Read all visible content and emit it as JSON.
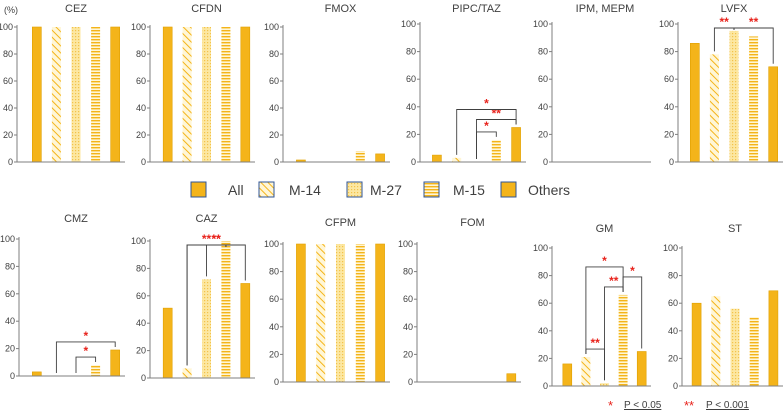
{
  "figure": {
    "y_unit": "(%)",
    "legend": [
      {
        "label": "All",
        "pattern": "solid"
      },
      {
        "label": "M-14",
        "pattern": "diag"
      },
      {
        "label": "M-27",
        "pattern": "dots"
      },
      {
        "label": "M-15",
        "pattern": "hstripe"
      },
      {
        "label": "Others",
        "pattern": "solid"
      }
    ],
    "footnote": [
      {
        "marker": "*",
        "text": "P < 0.05"
      },
      {
        "marker": "**",
        "text": "P < 0.001"
      }
    ],
    "colors": {
      "bar": "#F4B41A",
      "bar_edge": "#E0A000",
      "light_fill": "#FCE9A8",
      "sig": "#E8231C",
      "axis": "#7F7F7F",
      "bracket": "#404040",
      "text": "#404040"
    }
  },
  "chart_data": [
    {
      "type": "bar",
      "title": "CEZ",
      "categories": [
        "All",
        "M-14",
        "M-27",
        "M-15",
        "Others"
      ],
      "values": [
        100,
        100,
        100,
        100,
        100
      ],
      "ylim": [
        0,
        100
      ],
      "yticks": [
        0,
        20,
        40,
        60,
        80,
        100
      ],
      "significance": []
    },
    {
      "type": "bar",
      "title": "CFDN",
      "categories": [
        "All",
        "M-14",
        "M-27",
        "M-15",
        "Others"
      ],
      "values": [
        100,
        100,
        100,
        100,
        100
      ],
      "ylim": [
        0,
        100
      ],
      "yticks": [
        0,
        20,
        40,
        60,
        80,
        100
      ],
      "significance": []
    },
    {
      "type": "bar",
      "title": "FMOX",
      "categories": [
        "All",
        "M-14",
        "M-27",
        "M-15",
        "Others"
      ],
      "values": [
        1.5,
        0,
        0,
        8,
        6
      ],
      "ylim": [
        0,
        100
      ],
      "yticks": [
        0,
        20,
        40,
        60,
        80,
        100
      ],
      "significance": []
    },
    {
      "type": "bar",
      "title": "PIPC/TAZ",
      "categories": [
        "All",
        "M-14",
        "M-27",
        "M-15",
        "Others"
      ],
      "values": [
        5,
        3,
        0,
        16,
        25
      ],
      "ylim": [
        0,
        100
      ],
      "yticks": [
        0,
        20,
        40,
        60,
        80,
        100
      ],
      "significance": [
        {
          "from": 2,
          "to": 3,
          "label": "*"
        },
        {
          "from": 2,
          "to": 4,
          "label": "**"
        },
        {
          "from": 1,
          "to": 4,
          "label": "*"
        }
      ]
    },
    {
      "type": "bar",
      "title": "IPM, MEPM",
      "categories": [
        "All",
        "M-14",
        "M-27",
        "M-15",
        "Others"
      ],
      "values": [
        0,
        0,
        0,
        0,
        0
      ],
      "ylim": [
        0,
        100
      ],
      "yticks": [
        0,
        20,
        40,
        60,
        80,
        100
      ],
      "significance": []
    },
    {
      "type": "bar",
      "title": "LVFX",
      "categories": [
        "All",
        "M-14",
        "M-27",
        "M-15",
        "Others"
      ],
      "values": [
        86,
        78,
        95,
        91,
        69
      ],
      "ylim": [
        0,
        100
      ],
      "yticks": [
        0,
        20,
        40,
        60,
        80,
        100
      ],
      "significance": [
        {
          "from": 1,
          "to": 2,
          "label": "**"
        },
        {
          "from": 2,
          "to": 4,
          "label": "**"
        }
      ]
    },
    {
      "type": "bar",
      "title": "CMZ",
      "categories": [
        "All",
        "M-14",
        "M-27",
        "M-15",
        "Others"
      ],
      "values": [
        3,
        0,
        0,
        8,
        19
      ],
      "ylim": [
        0,
        100
      ],
      "yticks": [
        0,
        20,
        40,
        60,
        80,
        100
      ],
      "significance": [
        {
          "from": 2,
          "to": 3,
          "label": "*"
        },
        {
          "from": 1,
          "to": 4,
          "label": "*"
        }
      ]
    },
    {
      "type": "bar",
      "title": "CAZ",
      "categories": [
        "All",
        "M-14",
        "M-27",
        "M-15",
        "Others"
      ],
      "values": [
        51,
        7,
        72,
        100,
        69
      ],
      "ylim": [
        0,
        100
      ],
      "yticks": [
        0,
        20,
        40,
        60,
        80,
        100
      ],
      "significance": [
        {
          "from": 2,
          "to": 3,
          "label": "**"
        },
        {
          "from": 1,
          "to": 3,
          "label": "**"
        },
        {
          "from": 1,
          "to": 4,
          "label": "**"
        }
      ]
    },
    {
      "type": "bar",
      "title": "CFPM",
      "categories": [
        "All",
        "M-14",
        "M-27",
        "M-15",
        "Others"
      ],
      "values": [
        100,
        100,
        100,
        100,
        100
      ],
      "ylim": [
        0,
        100
      ],
      "yticks": [
        0,
        20,
        40,
        60,
        80,
        100
      ],
      "significance": []
    },
    {
      "type": "bar",
      "title": "FOM",
      "categories": [
        "All",
        "M-14",
        "M-27",
        "M-15",
        "Others"
      ],
      "values": [
        0,
        0,
        0,
        0,
        6
      ],
      "ylim": [
        0,
        100
      ],
      "yticks": [
        0,
        20,
        40,
        60,
        80,
        100
      ],
      "significance": []
    },
    {
      "type": "bar",
      "title": "GM",
      "categories": [
        "All",
        "M-14",
        "M-27",
        "M-15",
        "Others"
      ],
      "values": [
        16,
        21,
        2,
        66,
        25
      ],
      "ylim": [
        0,
        100
      ],
      "yticks": [
        0,
        20,
        40,
        60,
        80,
        100
      ],
      "significance": [
        {
          "from": 1,
          "to": 2,
          "label": "**"
        },
        {
          "from": 2,
          "to": 3,
          "label": "**"
        },
        {
          "from": 3,
          "to": 4,
          "label": "*"
        },
        {
          "from": 1,
          "to": 3,
          "label": "*"
        }
      ]
    },
    {
      "type": "bar",
      "title": "ST",
      "categories": [
        "All",
        "M-14",
        "M-27",
        "M-15",
        "Others"
      ],
      "values": [
        60,
        65,
        56,
        50,
        69
      ],
      "ylim": [
        0,
        100
      ],
      "yticks": [
        0,
        20,
        40,
        60,
        80,
        100
      ],
      "significance": []
    }
  ]
}
